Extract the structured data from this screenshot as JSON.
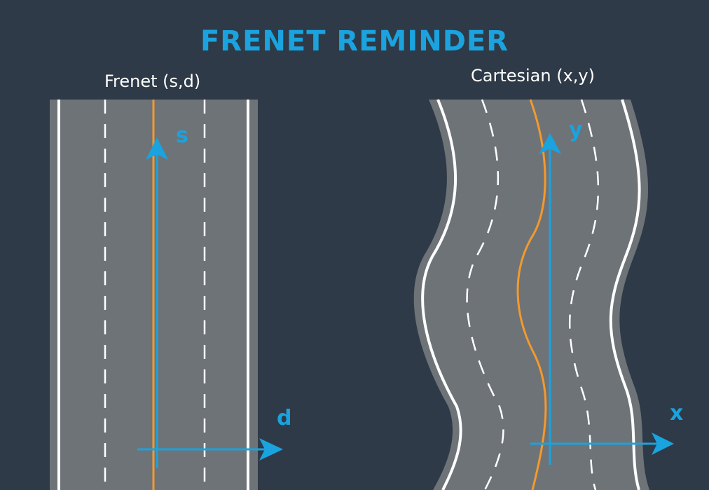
{
  "title": "FRENET REMINDER",
  "frenet": {
    "label": "Frenet (s,d)",
    "axis_vertical": "s",
    "axis_horizontal": "d"
  },
  "cartesian": {
    "label": "Cartesian (x,y)",
    "axis_vertical": "y",
    "axis_horizontal": "x"
  },
  "colors": {
    "background": "#2e3a47",
    "road": "#6e7378",
    "road_edge": "#7d8185",
    "lane_line": "#ffffff",
    "trajectory": "#f29a2e",
    "axis": "#1aa3de"
  }
}
